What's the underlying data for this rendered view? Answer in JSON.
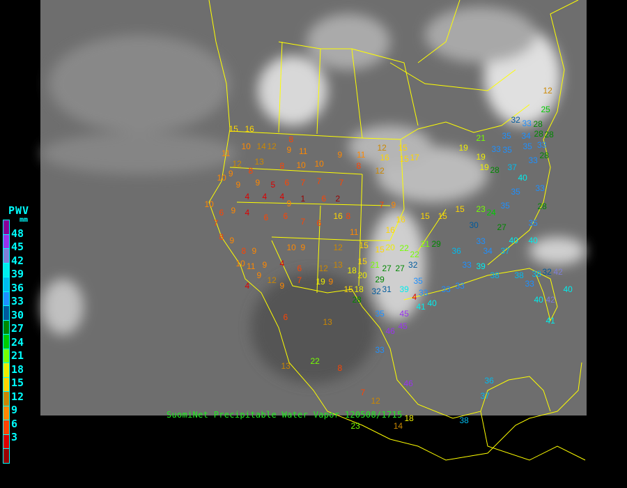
{
  "legend": {
    "title": "PWV",
    "unit": "mm",
    "ticks": [
      "48",
      "45",
      "42",
      "39",
      "36",
      "33",
      "30",
      "27",
      "24",
      "21",
      "18",
      "15",
      "12",
      "9",
      "6",
      "3"
    ],
    "colors": [
      "#880099",
      "#9933ee",
      "#7f7fd8",
      "#00eeee",
      "#00bbee",
      "#1e90ff",
      "#005a9c",
      "#008800",
      "#00cc00",
      "#77ff00",
      "#eeee00",
      "#ffd700",
      "#cc8800",
      "#ff8800",
      "#ff4400",
      "#dd0000",
      "#990000"
    ]
  },
  "caption": "SuomiNet Precipitable Water Vapor 120508/1715",
  "colors": {
    "borders": "#ffff00",
    "caption": "#22ee22",
    "legend_text": "#00ffff",
    "map_bg": "#6e6e6e"
  },
  "stations": [
    12,
    25,
    32,
    33,
    28,
    28,
    28,
    35,
    34,
    33,
    35,
    28,
    33,
    35,
    21,
    19,
    19,
    19,
    28,
    37,
    33,
    40,
    35,
    33,
    28,
    35,
    24,
    23,
    15,
    30,
    27,
    35,
    40,
    40,
    37,
    34,
    33,
    36,
    33,
    39,
    38,
    38,
    38,
    32,
    42,
    33,
    42,
    40,
    40,
    41,
    33,
    33,
    40,
    41,
    45,
    46,
    45,
    35,
    33,
    15,
    16,
    10,
    14,
    12,
    8,
    9,
    11,
    9,
    11,
    12,
    16,
    15,
    15,
    17,
    11,
    12,
    13,
    8,
    8,
    10,
    10,
    8,
    12,
    10,
    9,
    9,
    9,
    5,
    6,
    7,
    7,
    7,
    4,
    4,
    4,
    9,
    1,
    6,
    2,
    7,
    9,
    10,
    6,
    9,
    7,
    4,
    6,
    6,
    7,
    6,
    16,
    8,
    11,
    16,
    16,
    15,
    15,
    8,
    9,
    8,
    9,
    10,
    9,
    12,
    15,
    15,
    20,
    22,
    22,
    21,
    29,
    10,
    11,
    9,
    4,
    6,
    12,
    13,
    18,
    15,
    21,
    27,
    27,
    32,
    20,
    32,
    31,
    29,
    39,
    35,
    15,
    19,
    9,
    7,
    9,
    12,
    9,
    4,
    28,
    18,
    4,
    33,
    6,
    13,
    22,
    13,
    8,
    7,
    12,
    14,
    18,
    23,
    38,
    37,
    36,
    46
  ]
}
